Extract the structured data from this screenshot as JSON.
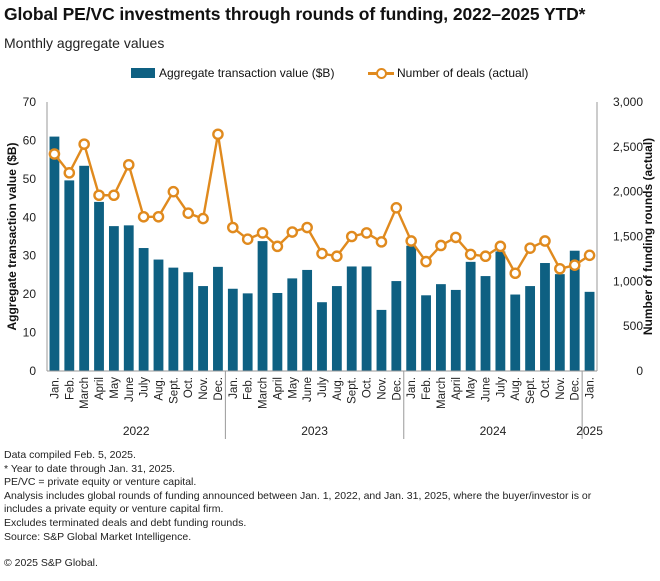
{
  "title": "Global PE/VC investments through rounds of funding, 2022–2025 YTD*",
  "subtitle": "Monthly aggregate values",
  "legend": {
    "bar_label": "Aggregate transaction value ($B)",
    "line_label": "Number of deals (actual)"
  },
  "colors": {
    "bar": "#0e6082",
    "line": "#e08a1e",
    "axis": "#999999"
  },
  "chart_data": {
    "type": "bar",
    "combo": "bar+line",
    "title": "Global PE/VC investments through rounds of funding, 2022–2025 YTD*",
    "subtitle": "Monthly aggregate values",
    "categories": [
      "Jan.",
      "Feb.",
      "March",
      "April",
      "May",
      "June",
      "July",
      "Aug.",
      "Sept.",
      "Oct.",
      "Nov.",
      "Dec.",
      "Jan.",
      "Feb.",
      "March",
      "April",
      "May",
      "June",
      "July",
      "Aug.",
      "Sept.",
      "Oct.",
      "Nov.",
      "Dec.",
      "Jan.",
      "Feb.",
      "March",
      "April",
      "May",
      "June",
      "July",
      "Aug.",
      "Sept.",
      "Oct.",
      "Nov.",
      "Dec.",
      "Jan."
    ],
    "year_groups": [
      {
        "label": "2022",
        "count": 12
      },
      {
        "label": "2023",
        "count": 12
      },
      {
        "label": "2024",
        "count": 12
      },
      {
        "label": "2025",
        "count": 1
      }
    ],
    "series": [
      {
        "name": "Aggregate transaction value ($B)",
        "type": "bar",
        "axis": "left",
        "values": [
          61.0,
          49.6,
          53.4,
          44.0,
          37.7,
          37.9,
          32.0,
          29.0,
          26.9,
          25.7,
          22.1,
          27.1,
          21.4,
          20.2,
          33.8,
          20.3,
          24.1,
          26.3,
          17.9,
          22.1,
          27.2,
          27.2,
          15.9,
          23.4,
          32.6,
          19.7,
          22.6,
          21.1,
          28.4,
          24.7,
          31.1,
          19.9,
          22.1,
          28.1,
          25.2,
          31.3,
          20.6
        ]
      },
      {
        "name": "Number of deals (actual)",
        "type": "line",
        "axis": "right",
        "values": [
          2420,
          2210,
          2530,
          1960,
          1960,
          2300,
          1720,
          1720,
          2000,
          1760,
          1700,
          2640,
          1600,
          1470,
          1540,
          1390,
          1550,
          1600,
          1310,
          1280,
          1500,
          1540,
          1440,
          1820,
          1450,
          1220,
          1400,
          1490,
          1300,
          1280,
          1390,
          1090,
          1370,
          1450,
          1140,
          1180,
          1290
        ]
      }
    ],
    "y_left": {
      "label": "Aggregate transaction value ($B)",
      "range": [
        0,
        70
      ],
      "ticks": [
        0,
        10,
        20,
        30,
        40,
        50,
        60,
        70
      ]
    },
    "y_right": {
      "label": "Number of funding rounds (actual)",
      "range": [
        0,
        3000
      ],
      "ticks": [
        "0",
        "500",
        "1,000",
        "1,500",
        "2,000",
        "2,500",
        "3,000"
      ]
    },
    "grid": false,
    "legend_position": "top"
  },
  "notes": [
    "Data compiled Feb. 5, 2025.",
    "* Year to date through Jan. 31, 2025.",
    "PE/VC = private equity or venture capital.",
    "Analysis includes global rounds of funding announced between Jan. 1, 2022, and Jan. 31, 2025, where the buyer/investor is or",
    "includes a private equity or venture capital firm.",
    "Excludes terminated deals and debt funding rounds.",
    "Source: S&P Global Market Intelligence."
  ],
  "copyright": "© 2025 S&P Global."
}
